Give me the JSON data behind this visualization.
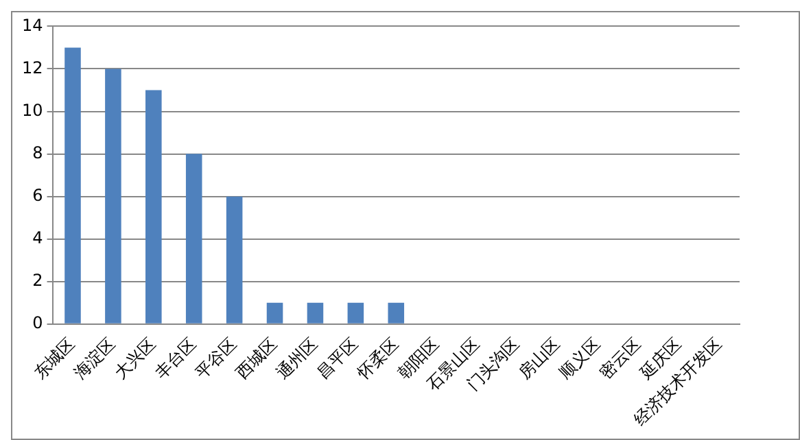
{
  "chart_data": {
    "type": "bar",
    "categories": [
      "东城区",
      "海淀区",
      "大兴区",
      "丰台区",
      "平谷区",
      "西城区",
      "通州区",
      "昌平区",
      "怀柔区",
      "朝阳区",
      "石景山区",
      "门头沟区",
      "房山区",
      "顺义区",
      "密云区",
      "延庆区",
      "经济技术开发区"
    ],
    "values": [
      13,
      12,
      11,
      8,
      6,
      1,
      1,
      1,
      1,
      0,
      0,
      0,
      0,
      0,
      0,
      0,
      0
    ],
    "color": "#4f81bd",
    "ylim": [
      0,
      14
    ],
    "yticks": [
      0,
      2,
      4,
      6,
      8,
      10,
      12,
      14
    ],
    "grid": "y",
    "legend": false
  }
}
